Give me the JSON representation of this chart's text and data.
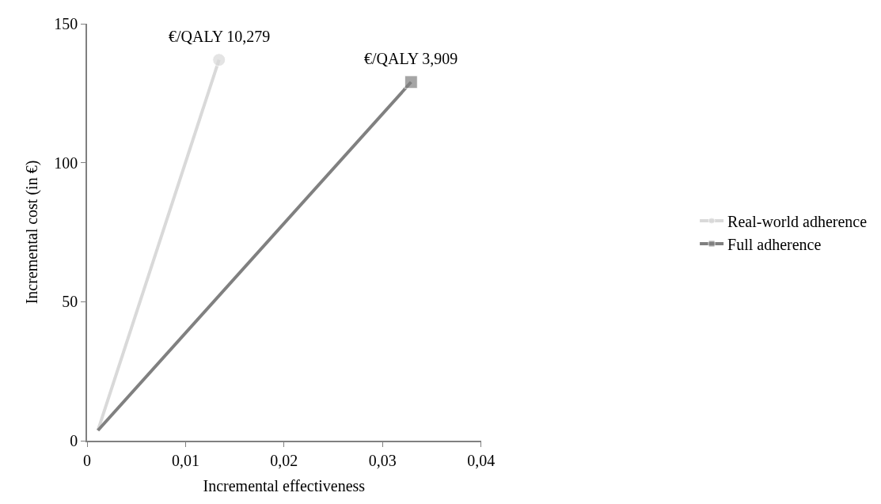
{
  "chart_data": {
    "type": "line",
    "xlabel": "Incremental effectiveness",
    "ylabel": "Incremental cost (in €)",
    "series": [
      {
        "name": "Real-world adherence",
        "color": "#d9d9d9",
        "marker": "circle",
        "x": [
          0.0011,
          0.0134
        ],
        "values": [
          3.7,
          137
        ]
      },
      {
        "name": "Full adherence",
        "color": "#808080",
        "marker": "square",
        "x": [
          0.0011,
          0.0329
        ],
        "values": [
          3.7,
          129
        ]
      }
    ],
    "annotations": [
      {
        "text": "€/QALY 10,279",
        "x": 0.0134,
        "y": 137
      },
      {
        "text": "€/QALY 3,909",
        "x": 0.0329,
        "y": 129
      }
    ],
    "xlim": [
      0,
      0.04
    ],
    "xticks": [
      {
        "value": 0,
        "label": "0"
      },
      {
        "value": 0.01,
        "label": "0,01"
      },
      {
        "value": 0.02,
        "label": "0,02"
      },
      {
        "value": 0.03,
        "label": "0,03"
      },
      {
        "value": 0.04,
        "label": "0,04"
      }
    ],
    "ylim": [
      0,
      150
    ],
    "yticks": [
      0,
      50,
      100,
      150
    ],
    "legend": "right"
  }
}
